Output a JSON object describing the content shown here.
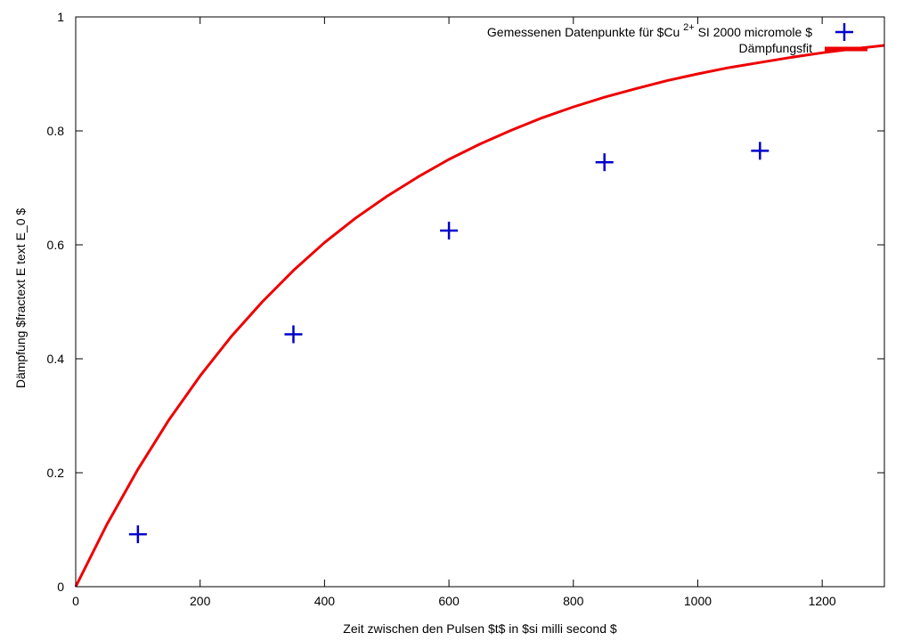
{
  "chart_data": {
    "type": "scatter",
    "xlabel": "Zeit zwischen den Pulsen $t$ in $si milli second $",
    "ylabel": "Dämpfung $fractext E text E_0 $",
    "xlim": [
      0,
      1300
    ],
    "ylim": [
      0,
      1
    ],
    "xticks": [
      0,
      200,
      400,
      600,
      800,
      1000,
      1200
    ],
    "yticks": [
      0,
      0.2,
      0.4,
      0.6,
      0.8,
      1
    ],
    "grid": false,
    "legend_position": "top-right",
    "series": [
      {
        "name": "Gemessenen Datenpunkte für $Cu^{2+} SI 2000 micromole $",
        "name_parts": {
          "prefix": "Gemessenen Datenpunkte für $Cu",
          "superscript": "2+",
          "suffix": " SI 2000 micromole $"
        },
        "kind": "points",
        "marker": "plus",
        "color": "#0000cc",
        "x": [
          100,
          350,
          600,
          850,
          1100
        ],
        "y": [
          0.092,
          0.443,
          0.625,
          0.745,
          0.765
        ]
      },
      {
        "name": "Dämpfungsfit",
        "kind": "line",
        "color": "#ee0000",
        "x": [
          0,
          50,
          100,
          150,
          200,
          250,
          300,
          350,
          400,
          450,
          500,
          550,
          600,
          650,
          700,
          750,
          800,
          850,
          900,
          950,
          1000,
          1050,
          1100,
          1150,
          1200,
          1250,
          1300
        ],
        "y": [
          0,
          0.109,
          0.206,
          0.293,
          0.37,
          0.439,
          0.5,
          0.555,
          0.604,
          0.647,
          0.685,
          0.719,
          0.75,
          0.777,
          0.801,
          0.823,
          0.842,
          0.859,
          0.874,
          0.888,
          0.9,
          0.911,
          0.92,
          0.929,
          0.937,
          0.944,
          0.95
        ]
      }
    ]
  }
}
